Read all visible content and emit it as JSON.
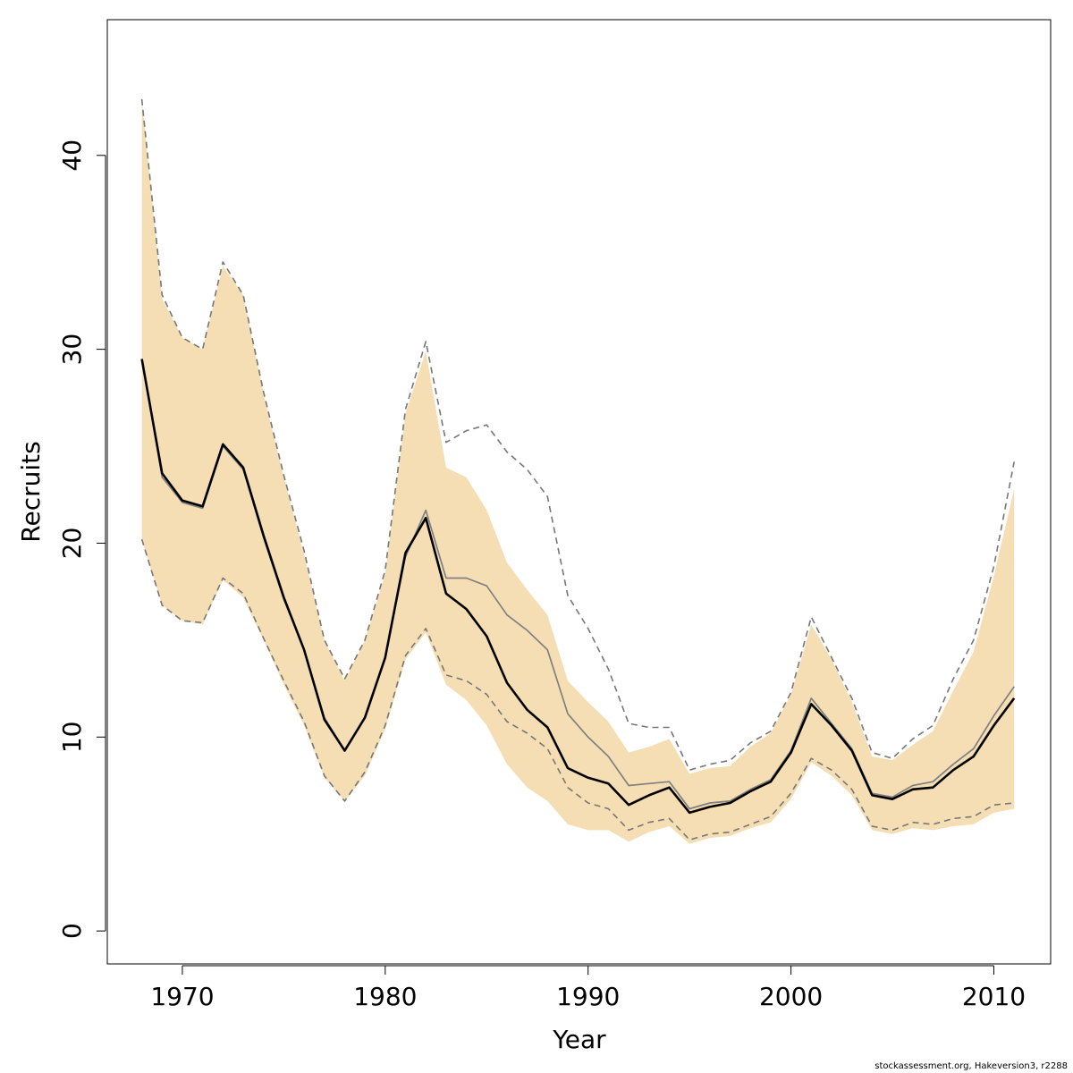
{
  "chart_data": {
    "type": "line",
    "xlabel": "Year",
    "ylabel": "Recruits",
    "xlim": [
      1966.3,
      2012.8
    ],
    "ylim": [
      -1.7,
      47
    ],
    "xticks": [
      1970,
      1980,
      1990,
      2000,
      2010
    ],
    "yticks": [
      0,
      10,
      20,
      30,
      40
    ],
    "x": [
      1968,
      1969,
      1970,
      1971,
      1972,
      1973,
      1974,
      1975,
      1976,
      1977,
      1978,
      1979,
      1980,
      1981,
      1982,
      1983,
      1984,
      1985,
      1986,
      1987,
      1988,
      1989,
      1990,
      1991,
      1992,
      1993,
      1994,
      1995,
      1996,
      1997,
      1998,
      1999,
      2000,
      2001,
      2002,
      2003,
      2004,
      2005,
      2006,
      2007,
      2008,
      2009,
      2010,
      2011
    ],
    "series": [
      {
        "name": "interval band",
        "color": "#f5deb3",
        "upper": [
          42.9,
          32.6,
          30.6,
          30.0,
          34.3,
          32.8,
          27.7,
          23.4,
          19.4,
          15.0,
          12.9,
          15.0,
          18.4,
          26.7,
          29.9,
          23.9,
          23.4,
          21.7,
          19.0,
          17.6,
          16.3,
          12.9,
          11.8,
          10.8,
          9.2,
          9.5,
          9.9,
          8.1,
          8.4,
          8.5,
          9.5,
          10.2,
          12.2,
          15.8,
          14.0,
          11.8,
          9.0,
          8.8,
          9.6,
          10.3,
          12.4,
          14.4,
          18.3,
          22.8
        ],
        "lower": [
          20.2,
          16.8,
          16.0,
          15.8,
          18.1,
          17.2,
          15.0,
          12.7,
          10.6,
          7.9,
          6.7,
          8.0,
          10.4,
          14.0,
          15.4,
          12.7,
          11.9,
          10.6,
          8.6,
          7.4,
          6.7,
          5.5,
          5.2,
          5.2,
          4.6,
          5.1,
          5.4,
          4.5,
          4.8,
          4.9,
          5.3,
          5.6,
          6.8,
          8.7,
          8.0,
          7.0,
          5.2,
          5.0,
          5.3,
          5.2,
          5.4,
          5.5,
          6.1,
          6.3
        ]
      },
      {
        "name": "dashed upper bound",
        "style": "dashed",
        "color": "#777777",
        "values": [
          42.9,
          32.8,
          30.6,
          30.0,
          34.5,
          32.8,
          27.8,
          23.5,
          19.6,
          15.0,
          13.0,
          15.0,
          18.6,
          26.9,
          30.4,
          25.2,
          25.8,
          26.1,
          24.7,
          23.8,
          22.4,
          17.3,
          15.6,
          13.5,
          10.7,
          10.5,
          10.5,
          8.3,
          8.6,
          8.8,
          9.7,
          10.3,
          12.3,
          16.2,
          14.1,
          12.0,
          9.2,
          8.9,
          9.9,
          10.6,
          13.0,
          15.0,
          18.8,
          24.2
        ]
      },
      {
        "name": "dashed lower bound",
        "style": "dashed",
        "color": "#777777",
        "values": [
          20.2,
          16.8,
          16.0,
          15.9,
          18.2,
          17.4,
          15.1,
          12.9,
          10.8,
          8.0,
          6.7,
          8.2,
          10.6,
          14.2,
          15.6,
          13.2,
          12.9,
          12.2,
          10.8,
          10.2,
          9.4,
          7.4,
          6.6,
          6.3,
          5.2,
          5.6,
          5.8,
          4.7,
          5.0,
          5.1,
          5.5,
          5.9,
          7.1,
          8.9,
          8.3,
          7.3,
          5.4,
          5.2,
          5.6,
          5.5,
          5.8,
          5.9,
          6.5,
          6.6
        ]
      },
      {
        "name": "gray median",
        "style": "solid",
        "color": "#808080",
        "values": [
          29.5,
          23.4,
          22.1,
          21.8,
          25.0,
          23.8,
          20.3,
          17.1,
          14.5,
          11.0,
          9.3,
          11.0,
          14.1,
          19.3,
          21.7,
          18.2,
          18.2,
          17.8,
          16.3,
          15.5,
          14.5,
          11.2,
          10.0,
          9.0,
          7.5,
          7.6,
          7.7,
          6.3,
          6.6,
          6.7,
          7.3,
          7.8,
          9.3,
          12.0,
          10.7,
          9.4,
          7.1,
          6.9,
          7.5,
          7.7,
          8.6,
          9.4,
          11.1,
          12.6
        ]
      },
      {
        "name": "black median",
        "style": "solid",
        "color": "#000000",
        "values": [
          29.5,
          23.6,
          22.2,
          21.9,
          25.1,
          23.9,
          20.4,
          17.2,
          14.5,
          10.9,
          9.3,
          11.0,
          14.1,
          19.5,
          21.3,
          17.4,
          16.6,
          15.2,
          12.8,
          11.4,
          10.5,
          8.4,
          7.9,
          7.6,
          6.5,
          7.0,
          7.4,
          6.1,
          6.4,
          6.6,
          7.2,
          7.7,
          9.2,
          11.7,
          10.6,
          9.3,
          7.0,
          6.8,
          7.3,
          7.4,
          8.3,
          9.0,
          10.6,
          12.0
        ]
      }
    ]
  },
  "footer": {
    "text": "stockassessment.org, Hakeversion3, r2288"
  }
}
